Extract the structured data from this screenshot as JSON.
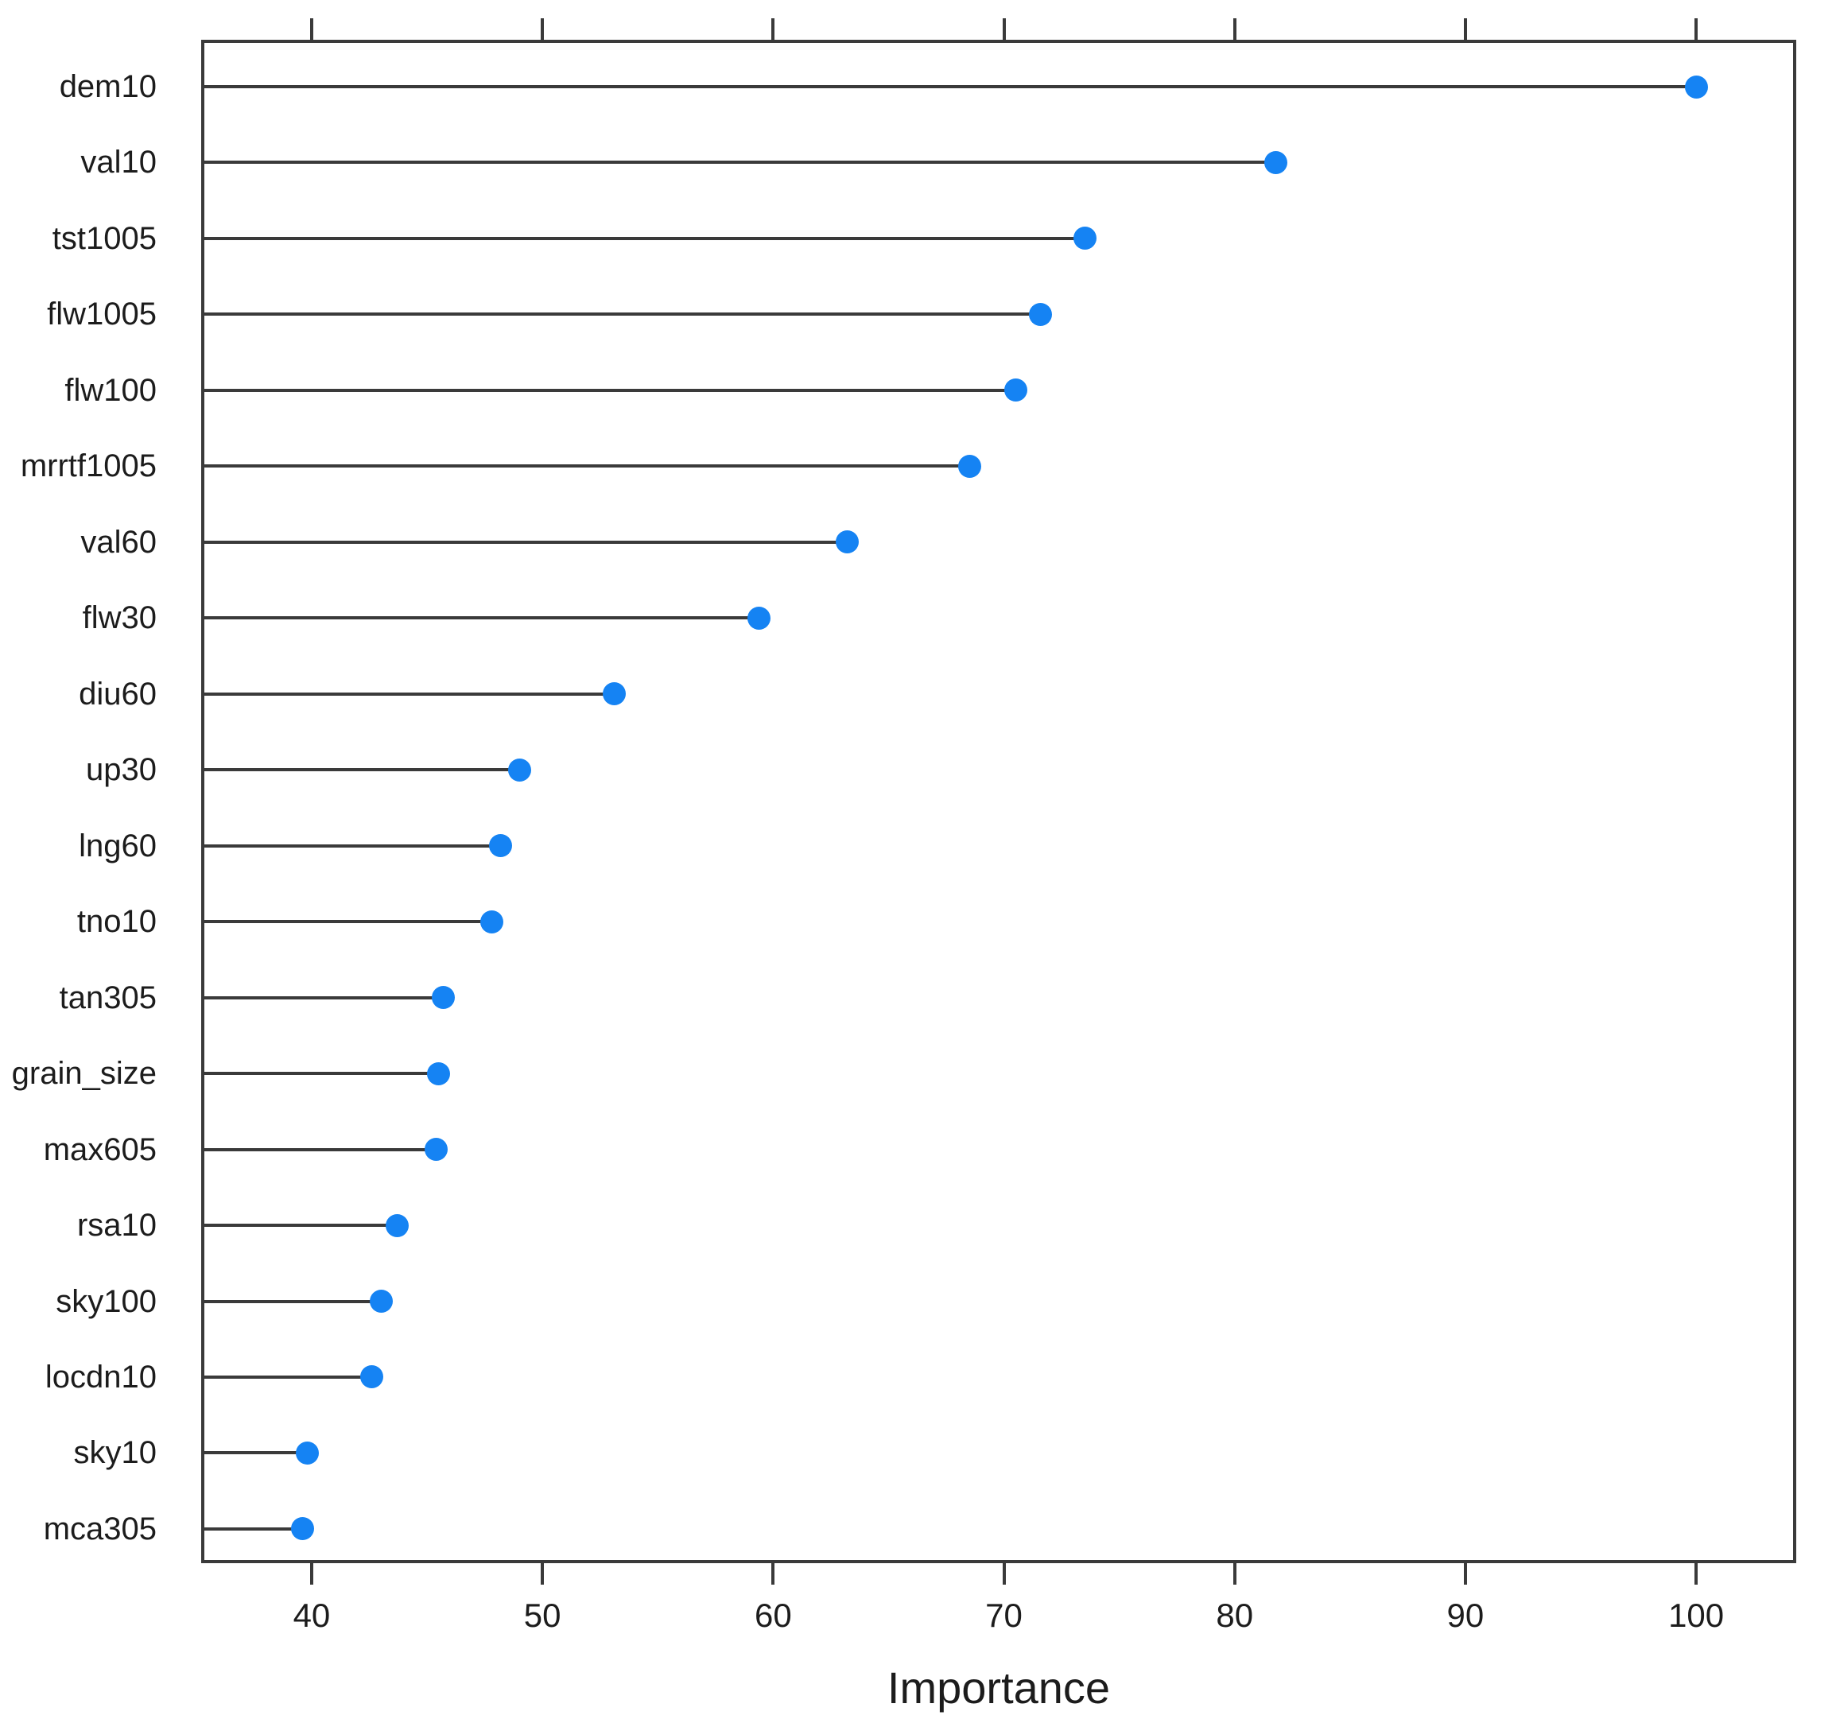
{
  "chart_data": {
    "type": "dotplot",
    "title": "",
    "xlabel": "Importance",
    "ylabel": "",
    "xlim": [
      35.35,
      104.2
    ],
    "x_ticks": [
      40,
      50,
      60,
      70,
      80,
      90,
      100
    ],
    "tick_sides": [
      "top",
      "bottom"
    ],
    "grid": false,
    "legend_position": "none",
    "categories": [
      "dem10",
      "val10",
      "tst1005",
      "flw1005",
      "flw100",
      "mrrtf1005",
      "val60",
      "flw30",
      "diu60",
      "up30",
      "lng60",
      "tno10",
      "tan305",
      "grain_size",
      "max605",
      "rsa10",
      "sky100",
      "locdn10",
      "sky10",
      "mca305"
    ],
    "values": [
      100.0,
      81.8,
      73.5,
      71.6,
      70.5,
      68.5,
      63.2,
      59.4,
      53.1,
      49.0,
      48.2,
      47.8,
      45.7,
      45.5,
      45.4,
      43.7,
      43.0,
      42.6,
      39.8,
      39.6
    ],
    "colors": {
      "dot": "#1583f3",
      "line": "#3a3a3a",
      "text": "#1c1c1c",
      "background": "#ffffff"
    }
  }
}
